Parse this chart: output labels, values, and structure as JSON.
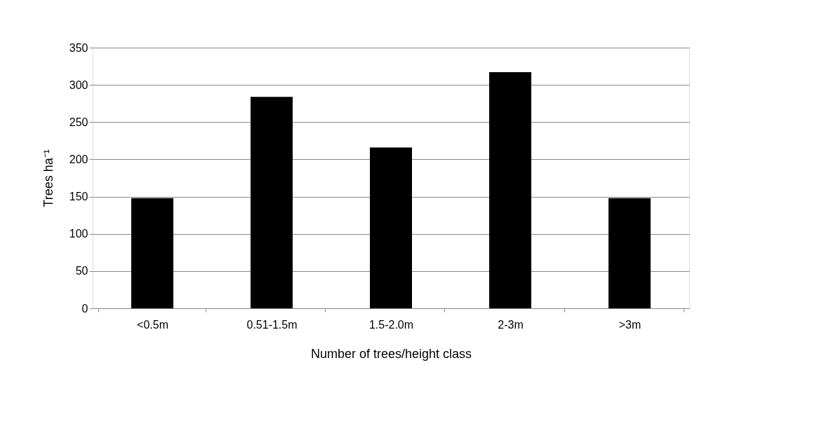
{
  "chart_data": {
    "type": "bar",
    "xlabel": "Number of trees/height class",
    "ylabel": "Trees ha⁻¹",
    "categories": [
      "<0.5m",
      "0.51-1.5m",
      "1.5-2.0m",
      "2-3m",
      ">3m"
    ],
    "values": [
      148,
      284,
      216,
      317,
      148
    ],
    "color": "#000000",
    "ylim": [
      0,
      350
    ],
    "yticks": [
      0,
      50,
      100,
      150,
      200,
      250,
      300,
      350
    ],
    "grid": "y"
  }
}
